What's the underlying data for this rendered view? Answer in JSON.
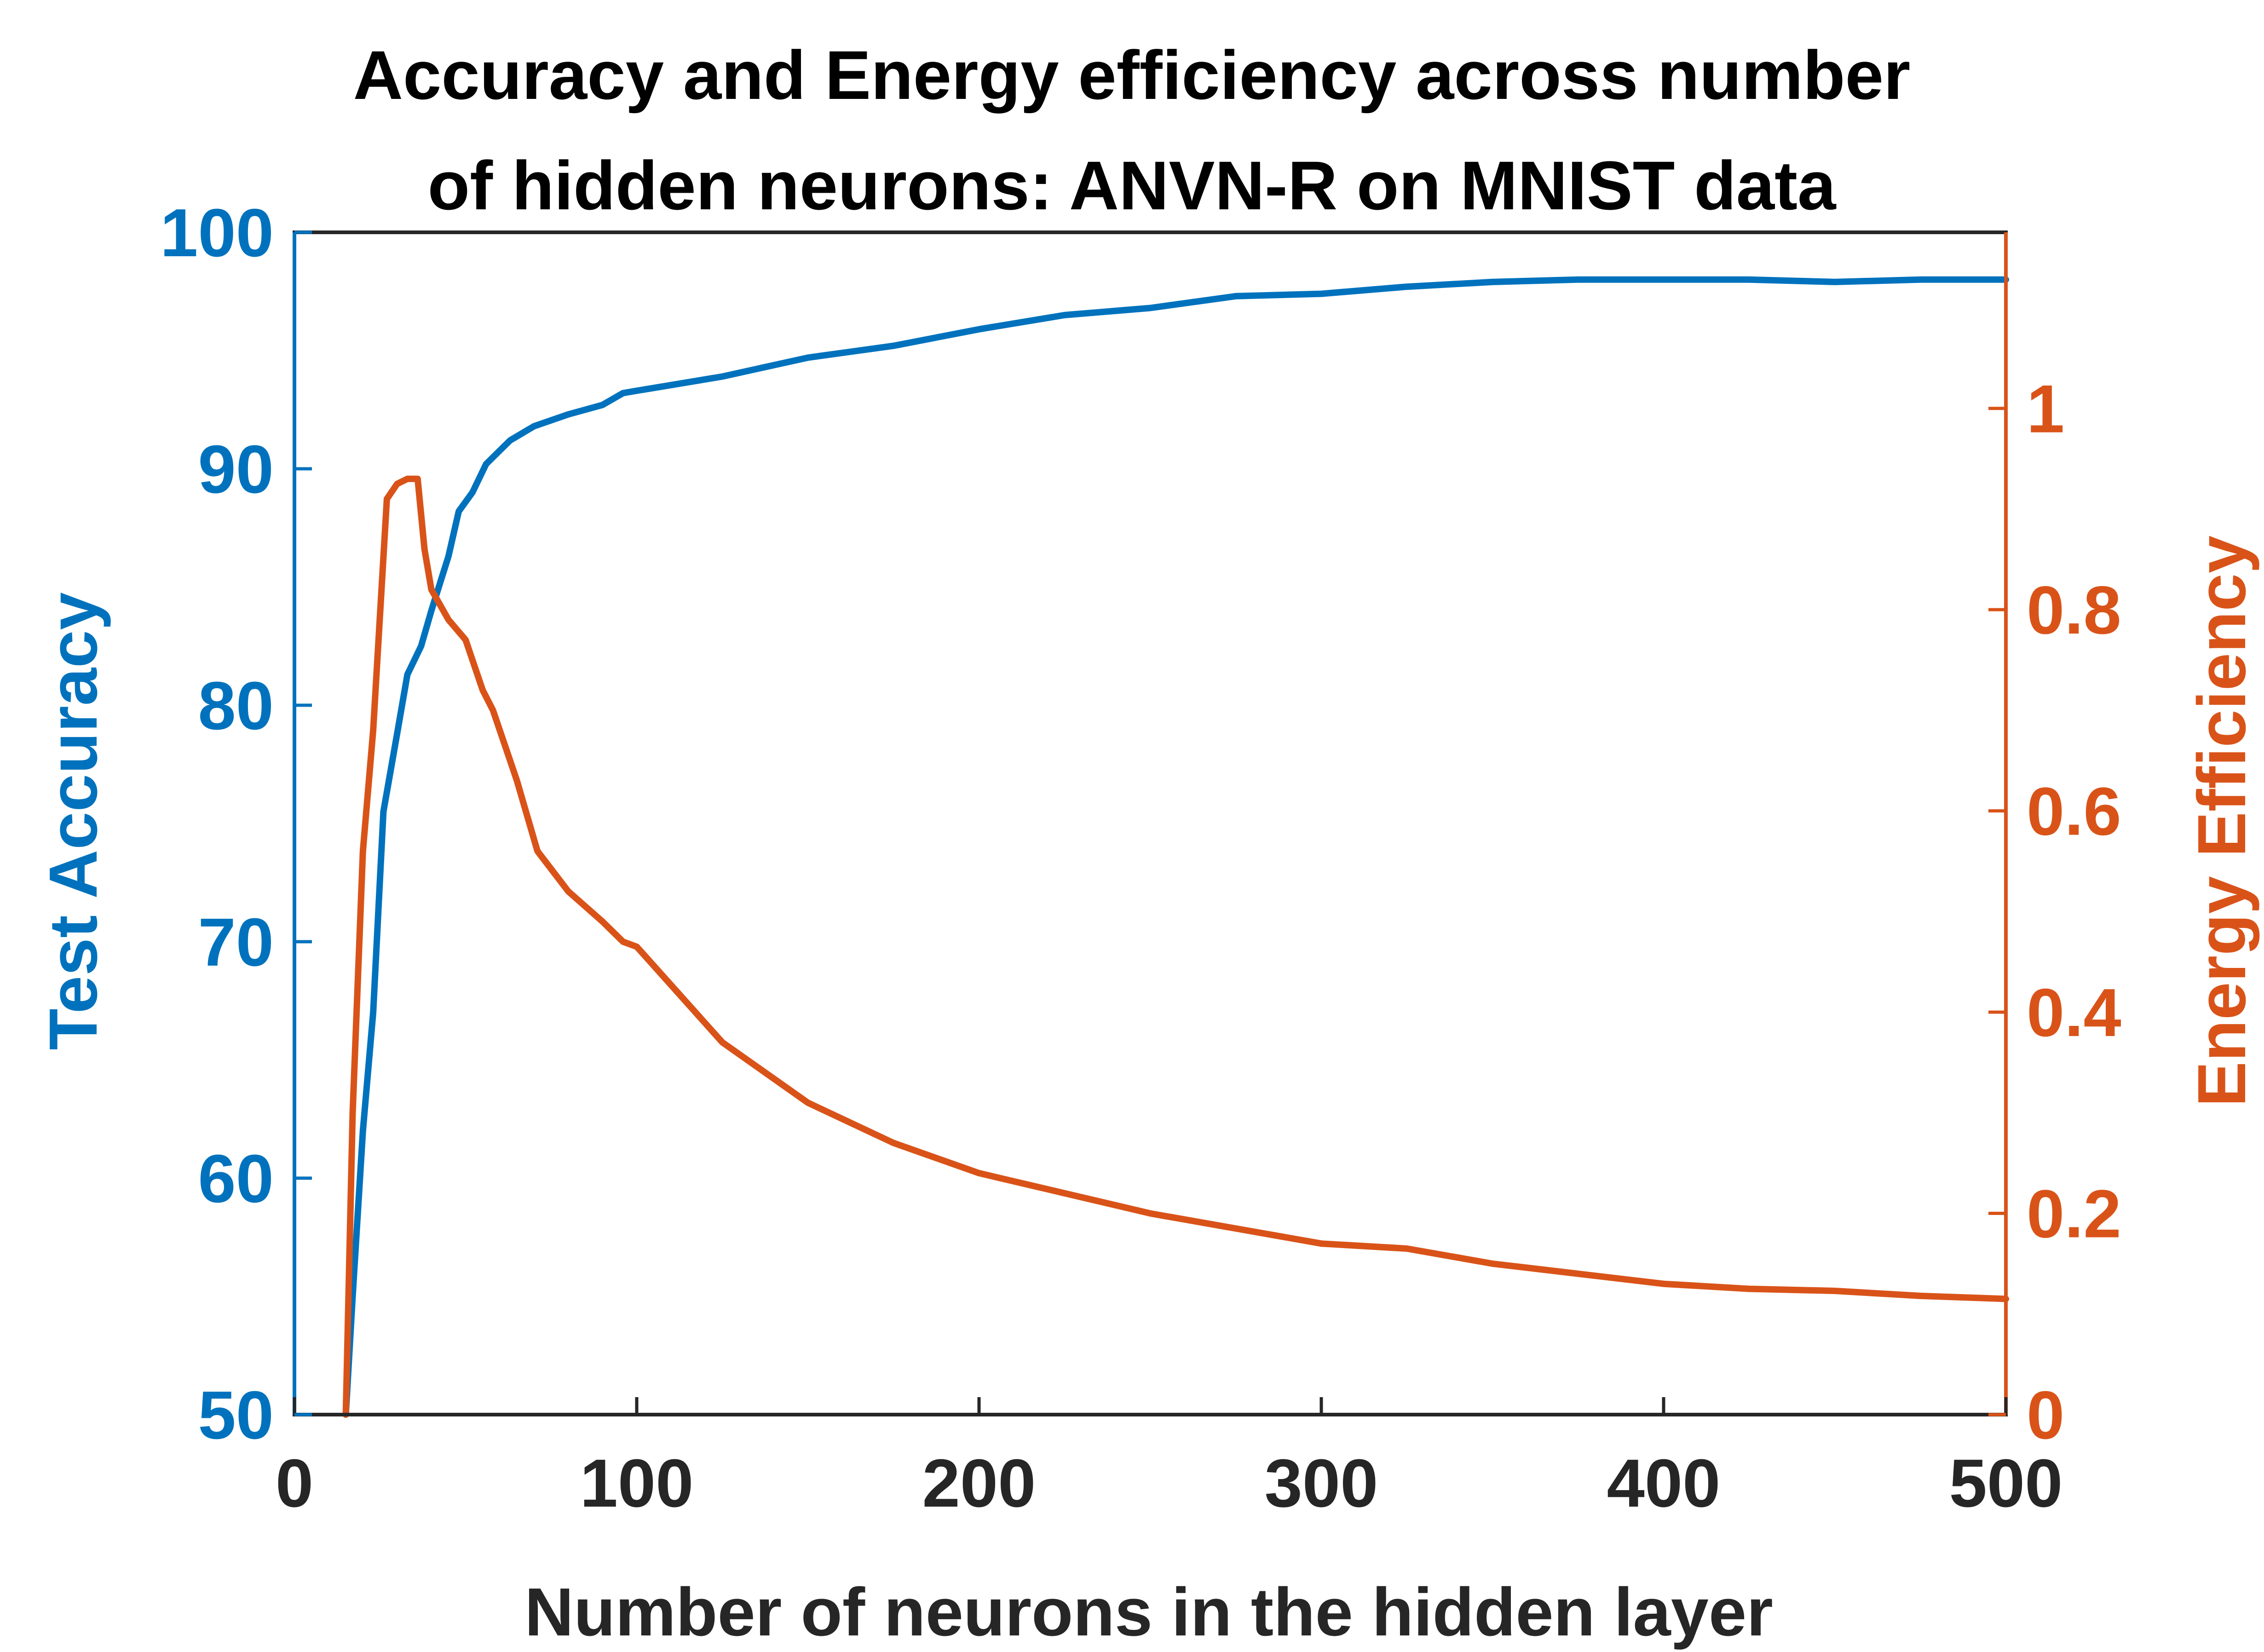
{
  "chart_data": {
    "type": "line",
    "title_lines": [
      "Accuracy and Energy efficiency across number",
      "of hidden neurons: ANVN-R on MNIST data"
    ],
    "xlabel": "Number of neurons in the hidden layer",
    "ylabel_left": "Test Accuracy",
    "ylabel_right": "Energy Efficiency",
    "xlim": [
      0,
      500
    ],
    "ylim_left": [
      50,
      100
    ],
    "ylim_right": [
      0,
      1.175
    ],
    "xticks": [
      0,
      100,
      200,
      300,
      400,
      500
    ],
    "yticks_left": [
      50,
      60,
      70,
      80,
      90,
      100
    ],
    "yticks_right": [
      0,
      0.2,
      0.4,
      0.6,
      0.8,
      1
    ],
    "ytick_labels_right": [
      "0",
      "0.2",
      "0.4",
      "0.6",
      "0.8",
      "1"
    ],
    "grid": false,
    "colors": {
      "accuracy": "#0072BD",
      "energy": "#D95319",
      "axis": "#262626",
      "title": "#000000"
    },
    "series": [
      {
        "axis": "left",
        "x": [
          15,
          17,
          20,
          23,
          26,
          30,
          33,
          37,
          40,
          45,
          48,
          52,
          56,
          63,
          70,
          80,
          90,
          96,
          100,
          125,
          150,
          175,
          200,
          225,
          250,
          275,
          300,
          325,
          350,
          375,
          400,
          425,
          450,
          475,
          500
        ],
        "values": [
          50,
          55,
          62,
          67,
          75.5,
          78.8,
          81.3,
          82.5,
          84,
          86.3,
          88.2,
          89,
          90.2,
          91.2,
          91.8,
          92.3,
          92.7,
          93.2,
          93.3,
          93.9,
          94.7,
          95.2,
          95.9,
          96.5,
          96.8,
          97.3,
          97.4,
          97.7,
          97.9,
          98,
          98,
          98,
          97.9,
          98,
          98
        ]
      },
      {
        "axis": "right",
        "x": [
          15,
          17,
          20,
          23,
          27,
          30,
          33,
          36,
          38,
          40,
          45,
          50,
          55,
          58,
          62,
          65,
          71,
          80,
          90,
          96,
          100,
          125,
          150,
          175,
          200,
          225,
          250,
          275,
          300,
          325,
          350,
          375,
          400,
          425,
          450,
          475,
          500
        ],
        "values": [
          0,
          0.3,
          0.56,
          0.68,
          0.91,
          0.925,
          0.93,
          0.93,
          0.86,
          0.82,
          0.79,
          0.77,
          0.72,
          0.7,
          0.66,
          0.63,
          0.56,
          0.52,
          0.49,
          0.47,
          0.465,
          0.37,
          0.31,
          0.27,
          0.24,
          0.22,
          0.2,
          0.185,
          0.17,
          0.165,
          0.15,
          0.14,
          0.13,
          0.125,
          0.123,
          0.118,
          0.115
        ]
      }
    ]
  }
}
